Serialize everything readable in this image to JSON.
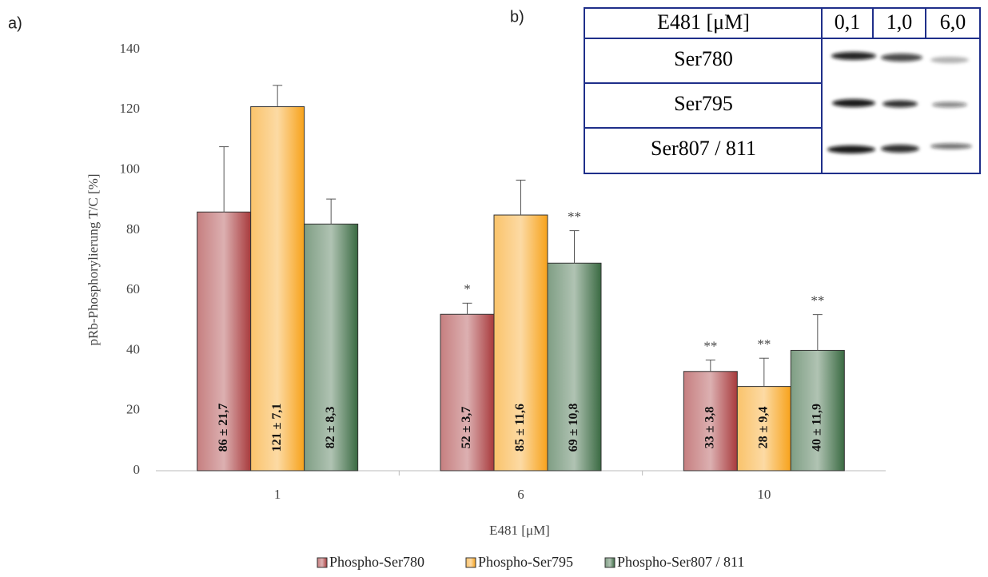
{
  "panel_labels": [
    "a)",
    "b)"
  ],
  "chart_data": {
    "type": "bar",
    "y_label": "pRb-Phosphorylierung T/C [%]",
    "x_label": "E481 [μM]",
    "categories": [
      "1",
      "6",
      "10"
    ],
    "series": [
      {
        "name": "Phospho-Ser780",
        "color": "#a83a3c",
        "values": [
          86,
          52,
          33
        ],
        "errors": [
          21.7,
          3.7,
          3.8
        ],
        "value_labels": [
          "86 ± 21,7",
          "52 ± 3,7",
          "33 ± 3,8"
        ],
        "significance": [
          null,
          "*",
          "**"
        ]
      },
      {
        "name": "Phospho-Ser795",
        "color": "#f7a21b",
        "values": [
          121,
          85,
          28
        ],
        "errors": [
          7.1,
          11.6,
          9.4
        ],
        "value_labels": [
          "121 ± 7,1",
          "85 ± 11,6",
          "28 ± 9,4"
        ],
        "significance": [
          null,
          null,
          "**"
        ]
      },
      {
        "name": "Phospho-Ser807 / 811",
        "color": "#3a6a42",
        "values": [
          82,
          69,
          40
        ],
        "errors": [
          8.3,
          10.8,
          11.9
        ],
        "value_labels": [
          "82 ± 8,3",
          "69 ± 10,8",
          "40 ± 11,9"
        ],
        "significance": [
          null,
          "**",
          "**"
        ]
      }
    ],
    "ylim": [
      0,
      140
    ],
    "yticks": [
      0,
      20,
      40,
      60,
      80,
      100,
      120,
      140
    ],
    "grid": false,
    "legend": "bottom"
  },
  "blot": {
    "header": [
      "E481 [μM]",
      "0,1",
      "1,0",
      "6,0"
    ],
    "rows": [
      "Ser780",
      "Ser795",
      "Ser807 / 811"
    ]
  }
}
